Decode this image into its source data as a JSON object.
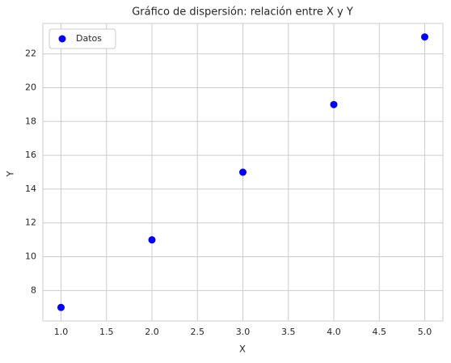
{
  "chart_data": {
    "type": "scatter",
    "title": "Gráfico de dispersión: relación entre X y Y",
    "x_label": "X",
    "y_label": "Y",
    "series": [
      {
        "name": "Datos",
        "color": "#0000ff",
        "x": [
          1,
          2,
          3,
          4,
          5
        ],
        "values": [
          7,
          11,
          15,
          19,
          23
        ]
      }
    ],
    "xlim": [
      0.8,
      5.2
    ],
    "xticks": [
      {
        "value": 1,
        "label": "1.0"
      },
      {
        "value": 1.5,
        "label": "1.5"
      },
      {
        "value": 2,
        "label": "2.0"
      },
      {
        "value": 2.5,
        "label": "2.5"
      },
      {
        "value": 3,
        "label": "3.0"
      },
      {
        "value": 3.5,
        "label": "3.5"
      },
      {
        "value": 4,
        "label": "4.0"
      },
      {
        "value": 4.5,
        "label": "4.5"
      },
      {
        "value": 5,
        "label": "5.0"
      }
    ],
    "ylim": [
      6.2,
      23.8
    ],
    "yticks": [
      8,
      10,
      12,
      14,
      16,
      18,
      20,
      22
    ],
    "grid": true,
    "legend": "upper left"
  }
}
